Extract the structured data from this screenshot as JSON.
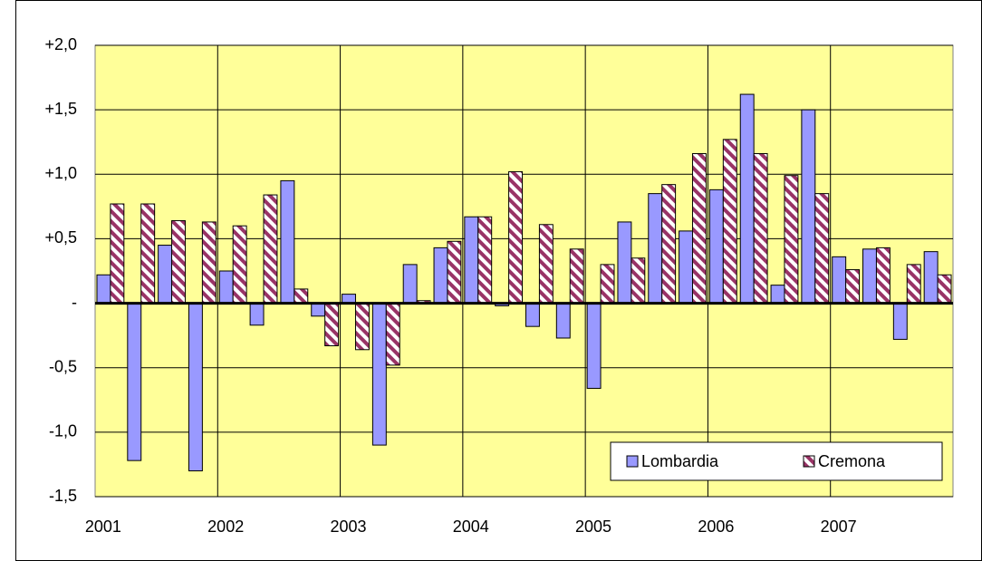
{
  "chart_data": {
    "type": "bar",
    "categories": [
      "2001",
      null,
      null,
      null,
      "2002",
      null,
      null,
      null,
      "2003",
      null,
      null,
      null,
      "2004",
      null,
      null,
      null,
      "2005",
      null,
      null,
      null,
      "2006",
      null,
      null,
      null,
      "2007",
      null,
      null,
      null
    ],
    "series": [
      {
        "name": "Lombardia",
        "color": "#9999ff",
        "values": [
          0.22,
          -1.22,
          0.45,
          -1.3,
          0.25,
          -0.17,
          0.95,
          -0.1,
          0.07,
          -1.1,
          0.3,
          0.43,
          0.67,
          -0.02,
          -0.18,
          -0.27,
          -0.66,
          0.63,
          0.85,
          0.56,
          0.88,
          1.62,
          0.14,
          1.5,
          0.36,
          0.42,
          -0.28,
          0.4
        ]
      },
      {
        "name": "Cremona",
        "color": "#993366",
        "hatch": true,
        "values": [
          0.77,
          0.77,
          0.64,
          0.63,
          0.6,
          0.84,
          0.11,
          -0.33,
          -0.36,
          -0.48,
          0.02,
          0.48,
          0.67,
          1.02,
          0.61,
          0.42,
          0.3,
          0.35,
          0.92,
          1.16,
          1.27,
          1.16,
          0.99,
          0.85,
          0.26,
          0.43,
          0.3,
          0.22
        ]
      }
    ],
    "ylim": [
      -1.5,
      2.0
    ],
    "yticks": [
      {
        "value": -1.5,
        "label": "-1,5"
      },
      {
        "value": -1.0,
        "label": "-1,0"
      },
      {
        "value": -0.5,
        "label": "-0,5"
      },
      {
        "value": 0,
        "label": "-"
      },
      {
        "value": 0.5,
        "label": "+0,5"
      },
      {
        "value": 1.0,
        "label": "+1,0"
      },
      {
        "value": 1.5,
        "label": "+1,5"
      },
      {
        "value": 2.0,
        "label": "+2,0"
      }
    ],
    "grid": true,
    "plot_background": "#ffff99",
    "legend": "lower right"
  }
}
